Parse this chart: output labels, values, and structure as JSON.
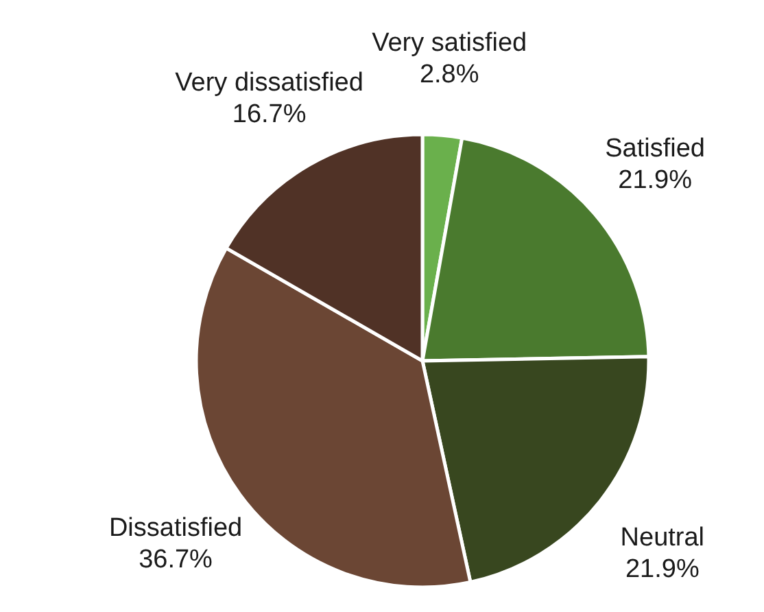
{
  "chart_data": {
    "type": "pie",
    "categories": [
      "Very satisfied",
      "Satisfied",
      "Neutral",
      "Dissatisfied",
      "Very dissatisfied"
    ],
    "values": [
      2.8,
      21.9,
      21.9,
      36.7,
      16.7
    ],
    "value_labels": [
      "2.8%",
      "21.9%",
      "21.9%",
      "36.7%",
      "16.7%"
    ],
    "colors": [
      "#6ab04c",
      "#4a7a2e",
      "#38471f",
      "#6b4634",
      "#503226"
    ]
  }
}
